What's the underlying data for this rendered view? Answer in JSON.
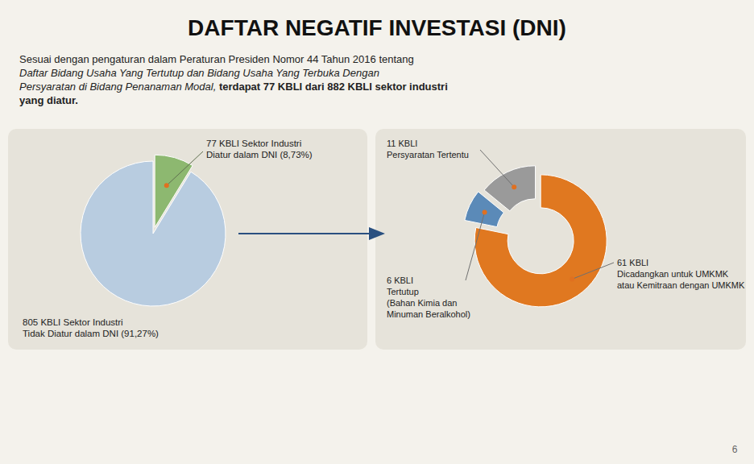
{
  "chart_data": [
    {
      "type": "pie",
      "title": "DAFTAR NEGATIF INVESTASI (DNI)",
      "annotations": [
        "Sesuai dengan pengaturan dalam Peraturan Presiden Nomor 44 Tahun 2016 tentang",
        "Daftar Bidang Usaha Yang Tertutup dan Bidang Usaha Yang Terbuka Dengan",
        "Persyaratan di Bidang Penanaman Modal,",
        " terdapat 77 KBLI dari 882 KBLI sektor industri",
        "yang diatur.",
        "6"
      ],
      "categories": [
        "77 KBLI Sektor Industri\nDiatur dalam DNI (8,73%)",
        "805 KBLI Sektor Industri\nTidak Diatur dalam DNI (91,27%)"
      ],
      "values": [
        8.73,
        91.27
      ],
      "colors": [
        "#8db870",
        "#b8cce0"
      ]
    },
    {
      "type": "donut",
      "categories": [
        "61 KBLI\nDicadangkan untuk UMKMK\natau Kemitraan dengan UMKMK",
        "6 KBLI\nTertutup\n(Bahan Kimia dan\nMinuman Beralkohol)",
        "11 KBLI\nPersyaratan Tertentu"
      ],
      "values": [
        61,
        6,
        11
      ],
      "colors": [
        "#e07820",
        "#5b8ab8",
        "#9a9a9a"
      ]
    }
  ]
}
